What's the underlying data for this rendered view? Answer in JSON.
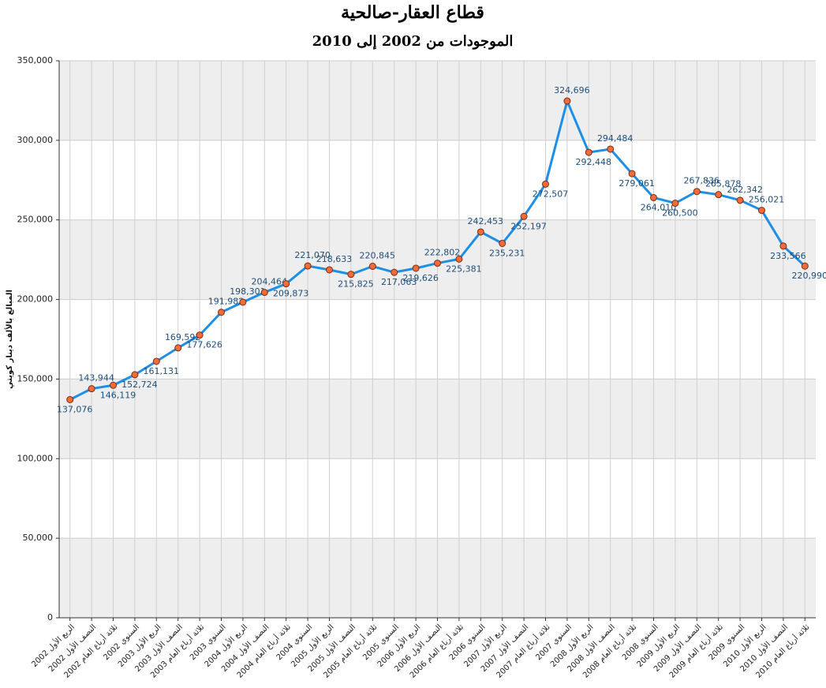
{
  "chart_data": {
    "type": "line",
    "title": "قطاع العقار-صالحية",
    "subtitle": "الموجودات من 2002 إلى 2010",
    "y_label": "المبالغ بالألف دينار كويتي",
    "categories": [
      "الربع الأول 2002",
      "النصف الأول 2002",
      "ثلاثة أرباع العام 2002",
      "السنوي 2002",
      "الربع الأول 2003",
      "النصف الأول 2003",
      "ثلاثة أرباع العام 2003",
      "السنوي 2003",
      "الربع الأول 2004",
      "النصف الأول 2004",
      "ثلاثة أرباع العام 2004",
      "السنوي 2004",
      "الربع الأول 2005",
      "النصف الأول 2005",
      "ثلاثة أرباع العام 2005",
      "السنوي 2005",
      "الربع الأول 2006",
      "النصف الأول 2006",
      "ثلاثة أرباع العام 2006",
      "السنوي 2006",
      "الربع الأول 2007",
      "النصف الأول 2007",
      "ثلاثة أرباع العام 2007",
      "السنوي 2007",
      "الربع الأول 2008",
      "النصف الأول 2008",
      "ثلاثة أرباع العام 2008",
      "السنوي 2008",
      "الربع الأول 2009",
      "النصف الأول 2009",
      "ثلاثة أرباع العام 2009",
      "السنوي 2009",
      "الربع الأول 2010",
      "النصف الأول 2010",
      "ثلاثة أرباع العام 2010"
    ],
    "series": [
      {
        "name": "الموجودات",
        "color": "#1e8fe6",
        "marker_color": "#f26b3a",
        "values": [
          137076,
          143944,
          146119,
          152724,
          161131,
          169592,
          177626,
          191982,
          198301,
          204464,
          209873,
          221070,
          218633,
          215825,
          220845,
          217063,
          219626,
          222802,
          225381,
          242453,
          235231,
          252197,
          272507,
          324696,
          292448,
          294484,
          279061,
          264010,
          260500,
          267836,
          265878,
          262342,
          256021,
          233566,
          220990
        ],
        "value_labels": [
          "137,076",
          "143,944",
          "146,119",
          "152,724",
          "161,131",
          "169,592",
          "177,626",
          "191,982",
          "198,301",
          "204,464",
          "209,873",
          "221,070",
          "218,633",
          "215,825",
          "220,845",
          "217,063",
          "219,626",
          "222,802",
          "225,381",
          "242,453",
          "235,231",
          "252,197",
          "272,507",
          "324,696",
          "292,448",
          "294,484",
          "279,061",
          "264,010",
          "260,500",
          "267,836",
          "265,878",
          "262,342",
          "256,021",
          "233,566",
          "220,990"
        ]
      }
    ],
    "ylim": [
      0,
      350000
    ],
    "yticks": [
      0,
      {
        "value": 50000,
        "label": "50,000"
      },
      {
        "value": 100000,
        "label": "100,000"
      },
      {
        "value": 150000,
        "label": "150,000"
      },
      {
        "value": 200000,
        "label": "200,000"
      },
      {
        "value": 250000,
        "label": "250,000"
      },
      {
        "value": 300000,
        "label": "300,000"
      },
      {
        "value": 350000,
        "label": "350,000"
      }
    ],
    "grid": true
  }
}
